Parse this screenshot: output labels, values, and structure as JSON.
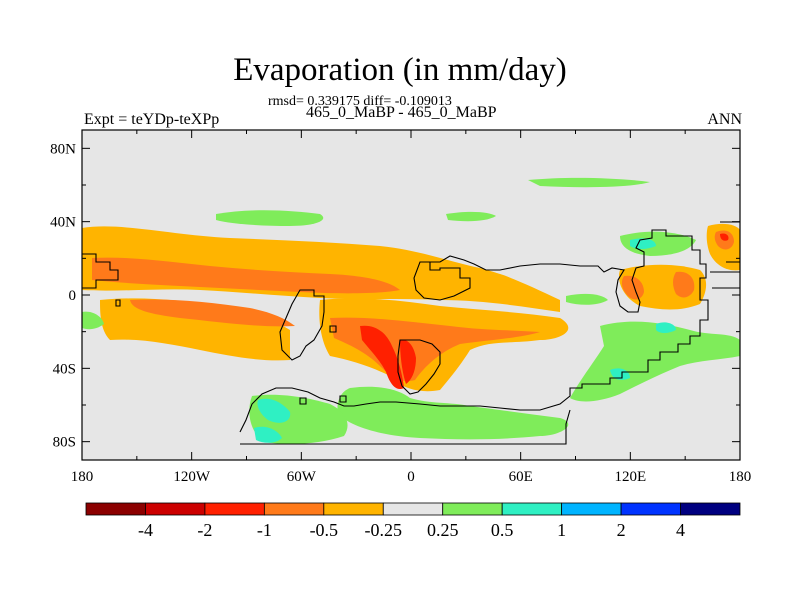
{
  "chart_data": {
    "type": "heatmap",
    "title": "Evaporation (in mm/day)",
    "stats_line": "rmsd= 0.339175 diff= -0.109013",
    "left_label": "Expt = teYDp-teXPp",
    "center_label": "465_0_MaBP - 465_0_MaBP",
    "right_label": "ANN",
    "x_ticks": [
      "180",
      "120W",
      "60W",
      "0",
      "60E",
      "120E",
      "180"
    ],
    "y_ticks": [
      "80N",
      "40N",
      "0",
      "40S",
      "80S"
    ],
    "lon_range": [
      -180,
      180
    ],
    "lat_range": [
      -90,
      90
    ],
    "colorbar_labels": [
      "-4",
      "-2",
      "-1",
      "-0.5",
      "-0.25",
      "0.25",
      "0.5",
      "1",
      "2",
      "4"
    ],
    "colors": {
      "lt_neg4": "#8b0000",
      "neg4_neg2": "#cc0000",
      "neg2_neg1": "#ff2000",
      "neg1_neg05": "#ff7a1a",
      "neg05_neg025": "#ffb400",
      "neg025_025": "#e6e6e6",
      "p025_05": "#7fec5a",
      "p05_1": "#2ff0c3",
      "p1_2": "#00b4ff",
      "p2_4": "#0033ff",
      "gt4": "#000080"
    }
  }
}
